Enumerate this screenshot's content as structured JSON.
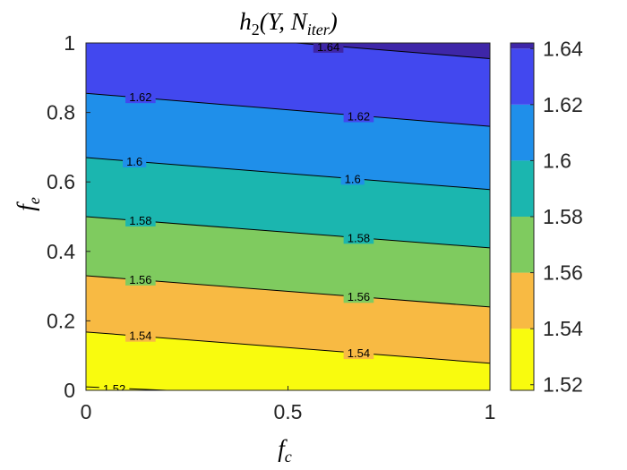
{
  "chart_data": {
    "type": "contour",
    "title": "h₂(Y, N_iter)",
    "title_parts": {
      "base": "h",
      "sub": "2",
      "args_open": "(Y, N",
      "args_sub": "iter",
      "args_close": ")"
    },
    "xlabel": {
      "base": "f",
      "sub": "c"
    },
    "ylabel": {
      "base": "f",
      "sub": "e"
    },
    "xlim": [
      0,
      1
    ],
    "ylim": [
      0,
      1
    ],
    "xticks": [
      "0",
      "0.5",
      "1"
    ],
    "yticks": [
      "0",
      "0.2",
      "0.4",
      "0.6",
      "0.8",
      "1"
    ],
    "grid": false,
    "colorbar": {
      "position": "right",
      "range": [
        1.518,
        1.642
      ],
      "ticks": [
        "1.52",
        "1.54",
        "1.56",
        "1.58",
        "1.6",
        "1.62",
        "1.64"
      ],
      "colors": [
        "#f9fb0e",
        "#f8ba43",
        "#7fcb5f",
        "#1bb6af",
        "#1f8fea",
        "#4248ef",
        "#3e26a8"
      ]
    },
    "levels": [
      1.52,
      1.54,
      1.56,
      1.58,
      1.6,
      1.62,
      1.64
    ],
    "contours": [
      {
        "level": 1.52,
        "label": "1.52",
        "points": [
          [
            0,
            0.01
          ],
          [
            0.2,
            0.0
          ]
        ]
      },
      {
        "level": 1.54,
        "label": "1.54",
        "points": [
          [
            0,
            0.168
          ],
          [
            1,
            0.078
          ]
        ]
      },
      {
        "level": 1.56,
        "label": "1.56",
        "points": [
          [
            0,
            0.33
          ],
          [
            1,
            0.24
          ]
        ]
      },
      {
        "level": 1.58,
        "label": "1.58",
        "points": [
          [
            0,
            0.5
          ],
          [
            1,
            0.41
          ]
        ]
      },
      {
        "level": 1.6,
        "label": "1.6",
        "points": [
          [
            0,
            0.67
          ],
          [
            1,
            0.578
          ]
        ]
      },
      {
        "level": 1.62,
        "label": "1.62",
        "points": [
          [
            0,
            0.855
          ],
          [
            1,
            0.76
          ]
        ]
      },
      {
        "level": 1.64,
        "label": "1.64",
        "points": [
          [
            0.52,
            1.0
          ],
          [
            1,
            0.955
          ]
        ]
      }
    ],
    "contour_labels": [
      {
        "text": "1.52",
        "x": 0.07,
        "y": 0.005
      },
      {
        "text": "1.54",
        "x": 0.135,
        "y": 0.158
      },
      {
        "text": "1.56",
        "x": 0.135,
        "y": 0.32
      },
      {
        "text": "1.58",
        "x": 0.135,
        "y": 0.49
      },
      {
        "text": "1.6",
        "x": 0.12,
        "y": 0.66
      },
      {
        "text": "1.62",
        "x": 0.135,
        "y": 0.845
      },
      {
        "text": "1.54",
        "x": 0.675,
        "y": 0.108
      },
      {
        "text": "1.56",
        "x": 0.675,
        "y": 0.27
      },
      {
        "text": "1.58",
        "x": 0.675,
        "y": 0.44
      },
      {
        "text": "1.6",
        "x": 0.66,
        "y": 0.61
      },
      {
        "text": "1.62",
        "x": 0.675,
        "y": 0.79
      },
      {
        "text": "1.64",
        "x": 0.6,
        "y": 0.99
      }
    ]
  }
}
